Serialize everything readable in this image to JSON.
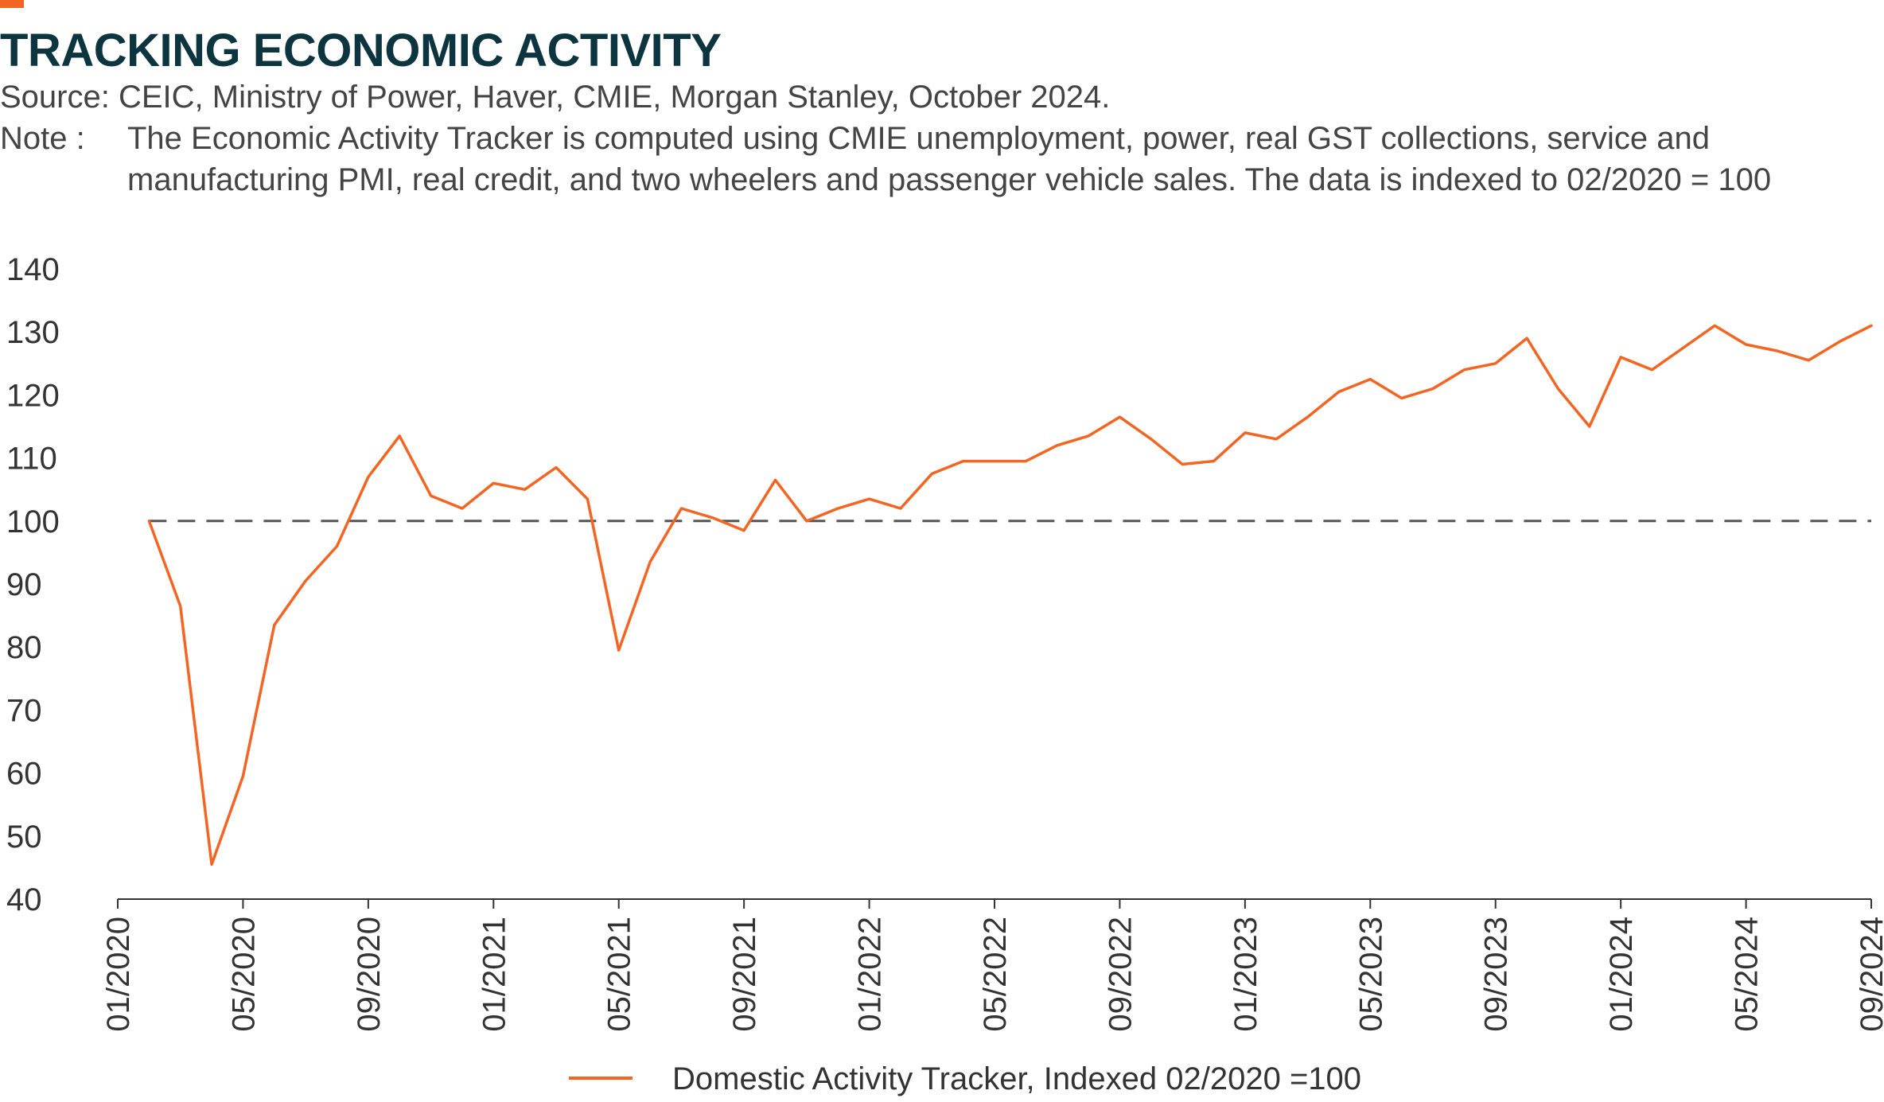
{
  "header": {
    "title": "TRACKING ECONOMIC ACTIVITY",
    "source": "Source: CEIC, Ministry of Power, Haver, CMIE, Morgan Stanley, October 2024.",
    "note_label": "Note  :",
    "note_text": "The Economic Activity Tracker is computed using CMIE unemployment, power, real GST collections, service and manufacturing PMI, real credit, and two wheelers and passenger vehicle sales. The data is indexed to 02/2020 = 100"
  },
  "colors": {
    "accent": "#f26522",
    "title": "#0d3540",
    "series": "#f26522",
    "baseline": "#555555",
    "axis": "#333333"
  },
  "chart_data": {
    "type": "line",
    "title": "TRACKING ECONOMIC ACTIVITY",
    "xlabel": "",
    "ylabel": "",
    "ylim": [
      40,
      140
    ],
    "yticks": [
      40,
      50,
      60,
      70,
      80,
      90,
      100,
      110,
      120,
      130,
      140
    ],
    "xlim": [
      "01/2020",
      "09/2024"
    ],
    "xticks": [
      "01/2020",
      "05/2020",
      "09/2020",
      "01/2021",
      "05/2021",
      "09/2021",
      "01/2022",
      "05/2022",
      "09/2022",
      "01/2023",
      "05/2023",
      "09/2023",
      "01/2024",
      "05/2024",
      "09/2024"
    ],
    "grid": false,
    "legend_position": "bottom-center",
    "reference_line": {
      "y": 100,
      "style": "dashed"
    },
    "series": [
      {
        "name": "Domestic Activity Tracker, Indexed 02/2020 =100",
        "x": [
          "02/2020",
          "03/2020",
          "04/2020",
          "05/2020",
          "06/2020",
          "07/2020",
          "08/2020",
          "09/2020",
          "10/2020",
          "11/2020",
          "12/2020",
          "01/2021",
          "02/2021",
          "03/2021",
          "04/2021",
          "05/2021",
          "06/2021",
          "07/2021",
          "08/2021",
          "09/2021",
          "10/2021",
          "11/2021",
          "12/2021",
          "01/2022",
          "02/2022",
          "03/2022",
          "04/2022",
          "05/2022",
          "06/2022",
          "07/2022",
          "08/2022",
          "09/2022",
          "10/2022",
          "11/2022",
          "12/2022",
          "01/2023",
          "02/2023",
          "03/2023",
          "04/2023",
          "05/2023",
          "06/2023",
          "07/2023",
          "08/2023",
          "09/2023",
          "10/2023",
          "11/2023",
          "12/2023",
          "01/2024",
          "02/2024",
          "03/2024",
          "04/2024",
          "05/2024",
          "06/2024",
          "07/2024",
          "08/2024",
          "09/2024"
        ],
        "values": [
          100,
          86.5,
          45.5,
          59.5,
          83.5,
          90.5,
          96,
          107,
          113.5,
          104,
          102,
          106,
          105,
          108.5,
          103.5,
          79.5,
          93.5,
          102,
          100.5,
          98.5,
          106.5,
          100,
          102,
          103.5,
          102,
          107.5,
          109.5,
          109.5,
          109.5,
          112,
          113.5,
          116.5,
          113,
          109,
          109.5,
          114,
          113,
          116.5,
          120.5,
          122.5,
          119.5,
          121,
          124,
          125,
          129,
          121,
          115,
          126,
          124,
          127.5,
          131,
          128,
          127,
          125.5,
          128.5,
          131
        ]
      }
    ]
  }
}
